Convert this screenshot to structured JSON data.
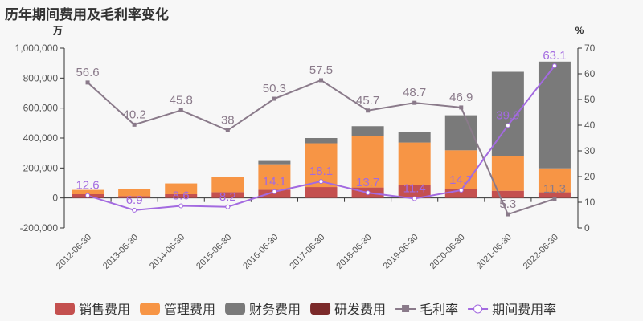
{
  "title": "历年期间费用及毛利率变化",
  "chart_data": {
    "type": "bar",
    "title": "历年期间费用及毛利率变化",
    "left_unit": "万",
    "right_unit": "%",
    "categories": [
      "2012-06-30",
      "2013-06-30",
      "2014-06-30",
      "2015-06-30",
      "2016-06-30",
      "2017-06-30",
      "2018-06-30",
      "2019-06-30",
      "2020-06-30",
      "2021-06-30",
      "2022-06-30"
    ],
    "left_axis": {
      "min": -200000,
      "max": 1000000,
      "ticks": [
        -200000,
        0,
        200000,
        400000,
        600000,
        800000,
        1000000
      ],
      "tick_labels": [
        "-200,000",
        "0",
        "200,000",
        "400,000",
        "600,000",
        "800,000",
        "1,000,000"
      ]
    },
    "right_axis": {
      "min": 0,
      "max": 70,
      "ticks": [
        0,
        10,
        20,
        30,
        40,
        50,
        60,
        70
      ],
      "tick_labels": [
        "0",
        "10",
        "20",
        "30",
        "40",
        "50",
        "60",
        "70"
      ]
    },
    "grid": false,
    "legend_position": "bottom",
    "series": [
      {
        "name": "销售费用",
        "type": "bar",
        "axis": "left",
        "color": "#c4504f",
        "values": [
          25000,
          12000,
          25000,
          39000,
          55000,
          73000,
          70000,
          86000,
          59000,
          48000,
          38000
        ]
      },
      {
        "name": "管理费用",
        "type": "bar",
        "axis": "left",
        "color": "#f79545",
        "values": [
          29000,
          47000,
          72000,
          101000,
          170000,
          292000,
          345000,
          284000,
          259000,
          231000,
          160000
        ]
      },
      {
        "name": "财务费用",
        "type": "bar",
        "axis": "left",
        "color": "#7a7a7a",
        "values": [
          0,
          0,
          0,
          0,
          22000,
          35000,
          64000,
          71000,
          234000,
          563000,
          712000
        ]
      },
      {
        "name": "研发费用",
        "type": "bar",
        "axis": "left",
        "color": "#7b2a2a",
        "values": [
          0,
          0,
          0,
          0,
          0,
          0,
          0,
          0,
          0,
          0,
          0
        ]
      },
      {
        "name": "毛利率",
        "type": "line",
        "axis": "right",
        "color": "#8a7a8a",
        "values": [
          56.6,
          40.2,
          45.8,
          38,
          50.3,
          57.5,
          45.7,
          48.7,
          46.9,
          5.3,
          11.3
        ],
        "labels": [
          "56.6",
          "40.2",
          "45.8",
          "38",
          "50.3",
          "57.5",
          "45.7",
          "48.7",
          "46.9",
          "5.3",
          "11.3"
        ]
      },
      {
        "name": "期间费用率",
        "type": "line",
        "axis": "right",
        "color": "#a36ae0",
        "values": [
          12.6,
          6.9,
          8.6,
          8.2,
          14.1,
          18.1,
          13.7,
          11.4,
          14.7,
          39.9,
          63.1
        ],
        "labels": [
          "12.6",
          "6.9",
          "8.6",
          "8.2",
          "14.1",
          "18.1",
          "13.7",
          "11.4",
          "14.7",
          "39.9",
          "63.1"
        ]
      }
    ]
  }
}
